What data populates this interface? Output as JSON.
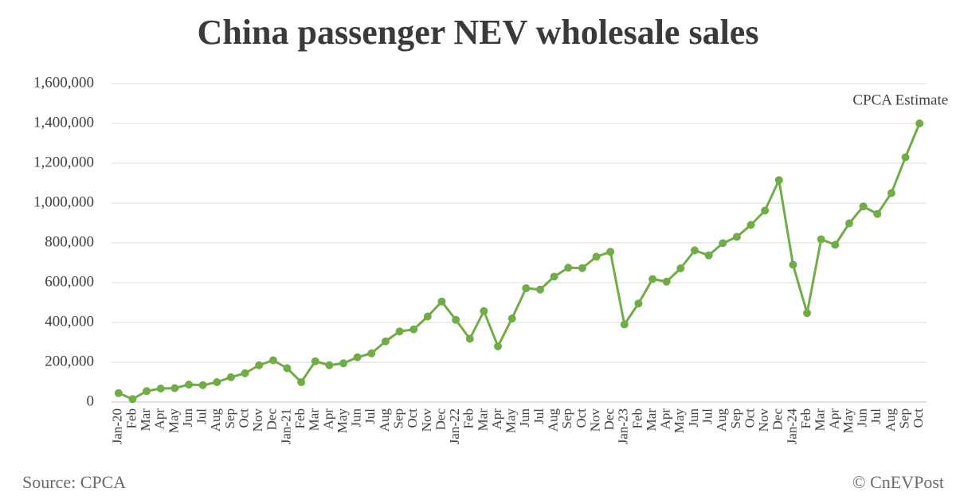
{
  "chart_data": {
    "type": "line",
    "title": "China passenger NEV wholesale sales",
    "annotation": "CPCA Estimate",
    "source": "Source: CPCA",
    "credit": "© CnEVPost",
    "categories": [
      "Jan-20",
      "Feb",
      "Mar",
      "Apr",
      "May",
      "Jun",
      "Jul",
      "Aug",
      "Sep",
      "Oct",
      "Nov",
      "Dec",
      "Jan-21",
      "Feb",
      "Mar",
      "Apr",
      "May",
      "Jun",
      "Jul",
      "Aug",
      "Sep",
      "Oct",
      "Nov",
      "Dec",
      "Jan-22",
      "Feb",
      "Mar",
      "Apr",
      "May",
      "Jun",
      "Jul",
      "Aug",
      "Sep",
      "Oct",
      "Nov",
      "Dec",
      "Jan-23",
      "Feb",
      "Mar",
      "Apr",
      "May",
      "Jun",
      "Jul",
      "Aug",
      "Sep",
      "Oct",
      "Nov",
      "Dec",
      "Jan-24",
      "Feb",
      "Mar",
      "Apr",
      "May",
      "Jun",
      "Jul",
      "Aug",
      "Sep",
      "Oct"
    ],
    "values": [
      45000,
      15000,
      55000,
      68000,
      70000,
      88000,
      85000,
      100000,
      125000,
      145000,
      185000,
      210000,
      170000,
      100000,
      205000,
      185000,
      195000,
      225000,
      245000,
      305000,
      355000,
      365000,
      430000,
      505000,
      413000,
      318000,
      457000,
      280000,
      420000,
      572000,
      565000,
      630000,
      675000,
      673000,
      730000,
      755000,
      390000,
      495000,
      618000,
      605000,
      672000,
      762000,
      737000,
      798000,
      830000,
      890000,
      962000,
      1115000,
      690000,
      447000,
      818000,
      790000,
      898000,
      983000,
      945000,
      1050000,
      1230000,
      1400000
    ],
    "color": "#70ad47",
    "ylim": [
      0,
      1600000
    ],
    "yticks": [
      0,
      {
        "value": 200000,
        "label": "200,000"
      },
      {
        "value": 400000,
        "label": "400,000"
      },
      {
        "value": 600000,
        "label": "600,000"
      },
      {
        "value": 800000,
        "label": "800,000"
      },
      {
        "value": 1000000,
        "label": "1,000,000"
      },
      {
        "value": 1200000,
        "label": "1,200,000"
      },
      {
        "value": 1400000,
        "label": "1,400,000"
      },
      {
        "value": 1600000,
        "label": "1,600,000"
      }
    ],
    "grid": true
  }
}
